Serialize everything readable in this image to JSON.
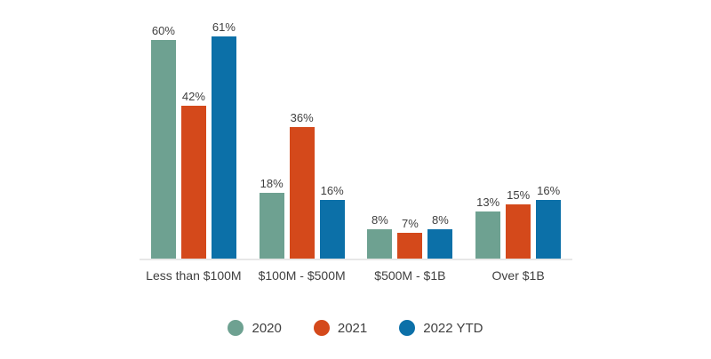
{
  "chart_data": {
    "type": "bar",
    "title": "",
    "categories": [
      "Less than $100M",
      "$100M - $500M",
      "$500M - $1B",
      "Over $1B"
    ],
    "series": [
      {
        "name": "2020",
        "color": "#6EA191",
        "values": [
          60,
          18,
          8,
          13
        ]
      },
      {
        "name": "2021",
        "color": "#D4491B",
        "values": [
          42,
          36,
          7,
          15
        ]
      },
      {
        "name": "2022 YTD",
        "color": "#0C70A8",
        "values": [
          61,
          16,
          8,
          16
        ]
      }
    ],
    "value_suffix": "%",
    "ylim": [
      0,
      71
    ],
    "grid": false,
    "legend_position": "bottom",
    "axis_line_color": "#E7E7E7",
    "label_color": "#3F3F3F"
  }
}
